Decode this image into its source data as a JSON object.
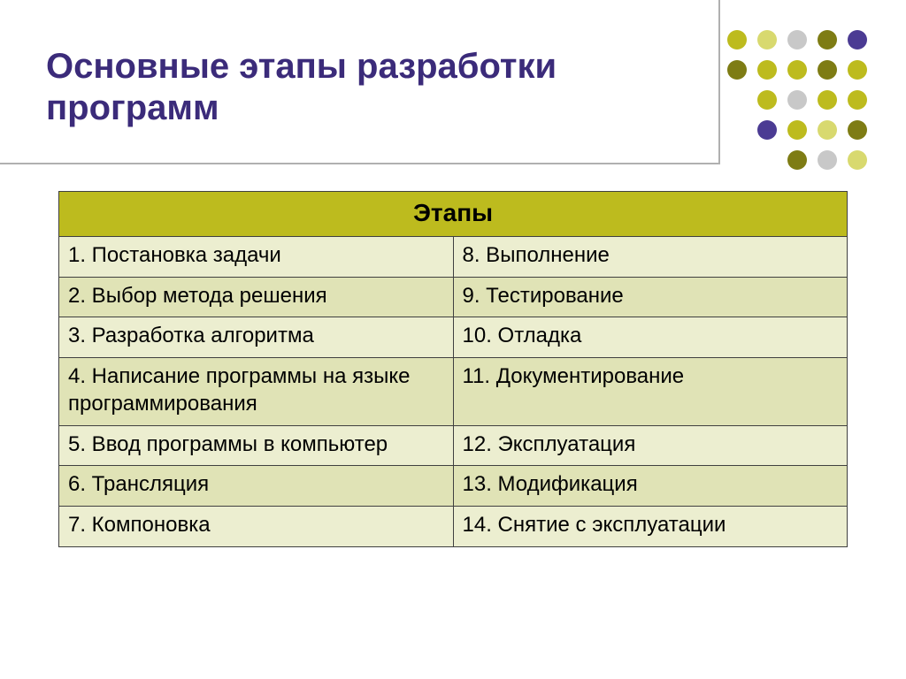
{
  "title": "Основные этапы разработки программ",
  "title_color": "#3b2b7a",
  "table": {
    "header": "Этапы",
    "header_bg": "#bdbb1e",
    "row_bg_a": "#eceed0",
    "row_bg_b": "#e0e3b6",
    "border_color": "#404040",
    "font_size_header": 28,
    "font_size_cell": 24,
    "col_widths": [
      "50%",
      "50%"
    ],
    "rows": [
      [
        "1. Постановка задачи",
        "8. Выполнение"
      ],
      [
        "2. Выбор метода решения",
        "9. Тестирование"
      ],
      [
        "3. Разработка алгоритма",
        "10. Отладка"
      ],
      [
        "4. Написание программы на языке программирования",
        "11. Документирование"
      ],
      [
        "5. Ввод программы в компьютер",
        "12. Эксплуатация"
      ],
      [
        "6. Трансляция",
        "13. Модификация"
      ],
      [
        "7. Компоновка",
        "14. Снятие с эксплуатации"
      ]
    ]
  },
  "decor": {
    "dot_grid": {
      "rows": 5,
      "cols": 5,
      "cell": 34,
      "dot_diameter": 22,
      "colors": {
        "olive_dark": "#7e7c14",
        "olive_mid": "#bdbb1e",
        "olive_light": "#d8d96f",
        "gray": "#c8c8c8",
        "purple": "#4b3b93",
        "none": null
      },
      "pattern": [
        [
          "olive_mid",
          "olive_light",
          "gray",
          "olive_dark",
          "purple"
        ],
        [
          "olive_dark",
          "olive_mid",
          "olive_mid",
          "olive_dark",
          "olive_mid"
        ],
        [
          "none",
          "olive_mid",
          "gray",
          "olive_mid",
          "olive_mid"
        ],
        [
          "none",
          "purple",
          "olive_mid",
          "olive_light",
          "olive_dark"
        ],
        [
          "none",
          "none",
          "olive_dark",
          "gray",
          "olive_light"
        ]
      ]
    },
    "divider_color": "#b0b0b0"
  }
}
